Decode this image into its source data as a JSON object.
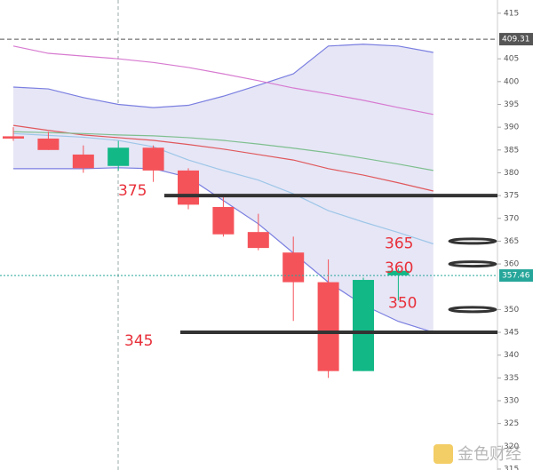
{
  "chart_data": {
    "type": "candlestick",
    "categories": [
      null,
      null,
      null,
      null,
      null,
      null,
      null,
      null,
      null,
      null,
      null,
      null,
      null
    ],
    "open": [
      388,
      387.5,
      384,
      381.5,
      385.5,
      380.5,
      372.5,
      367,
      362.5,
      356,
      336.5,
      357.5,
      null
    ],
    "high": [
      390,
      389,
      386,
      387,
      386,
      381,
      375,
      371,
      366,
      361,
      357,
      359,
      null
    ],
    "low": [
      387,
      385,
      380,
      380.5,
      378,
      372,
      366,
      363,
      347.5,
      335,
      336.5,
      352,
      null
    ],
    "close": [
      387.5,
      385,
      381,
      385.5,
      380.5,
      373,
      366.5,
      363.5,
      356,
      336.5,
      356.5,
      358.5,
      null
    ],
    "up_color": "#12b886",
    "down_color": "#f5535a",
    "overlays": [
      {
        "name": "Upper band",
        "color": "#7b7fe0",
        "values": [
          398.8,
          398.4,
          396.5,
          395,
          394.3,
          394.8,
          396.8,
          399.2,
          401.7,
          407.8,
          408.2,
          407.8,
          406.4
        ]
      },
      {
        "name": "Lower band",
        "color": "#7b7fe0",
        "values": [
          380.9,
          380.9,
          380.9,
          381.1,
          380.9,
          379,
          373.9,
          368.8,
          362.4,
          356,
          351,
          347.4,
          345
        ]
      },
      {
        "name": "MA pink",
        "color": "#d77ad0",
        "values": [
          407.8,
          406.2,
          405.6,
          405,
          404.2,
          403.1,
          401.7,
          400.2,
          398.6,
          397.3,
          395.9,
          394.3,
          392.8
        ]
      },
      {
        "name": "MA red",
        "color": "#e0585c",
        "values": [
          390.4,
          389.3,
          388.3,
          387.7,
          387.1,
          386.2,
          385.2,
          384,
          382.8,
          380.9,
          379.5,
          377.8,
          376
        ]
      },
      {
        "name": "MA green",
        "color": "#7fbf8f",
        "values": [
          389,
          388.8,
          388.6,
          388.3,
          388.1,
          387.7,
          387.1,
          386.3,
          385.4,
          384.4,
          383.2,
          381.9,
          380.5
        ]
      },
      {
        "name": "MA light blue",
        "color": "#9ec6e8",
        "values": [
          388.6,
          388.2,
          387.8,
          387.1,
          385.7,
          382.8,
          380.5,
          378.4,
          375.4,
          371.7,
          369.2,
          366.9,
          364.4
        ]
      }
    ],
    "band_fill": "#e6e6f6",
    "ylim": [
      314.8,
      417.9
    ],
    "yticks": [
      415,
      405,
      400,
      395,
      390,
      385,
      380,
      375,
      370,
      365,
      360,
      350,
      345,
      340,
      335,
      330,
      325,
      320,
      315
    ],
    "price_lines": [
      {
        "value": 409.31,
        "color": "#555555"
      },
      {
        "value": 357.46,
        "color": "#26a69a"
      }
    ],
    "levels": [
      {
        "value": 375,
        "style": "line"
      },
      {
        "value": 365,
        "style": "ellipse"
      },
      {
        "value": 360,
        "style": "ellipse"
      },
      {
        "value": 350,
        "style": "ellipse"
      },
      {
        "value": 345,
        "style": "line"
      }
    ],
    "watermark": "金色财经"
  }
}
